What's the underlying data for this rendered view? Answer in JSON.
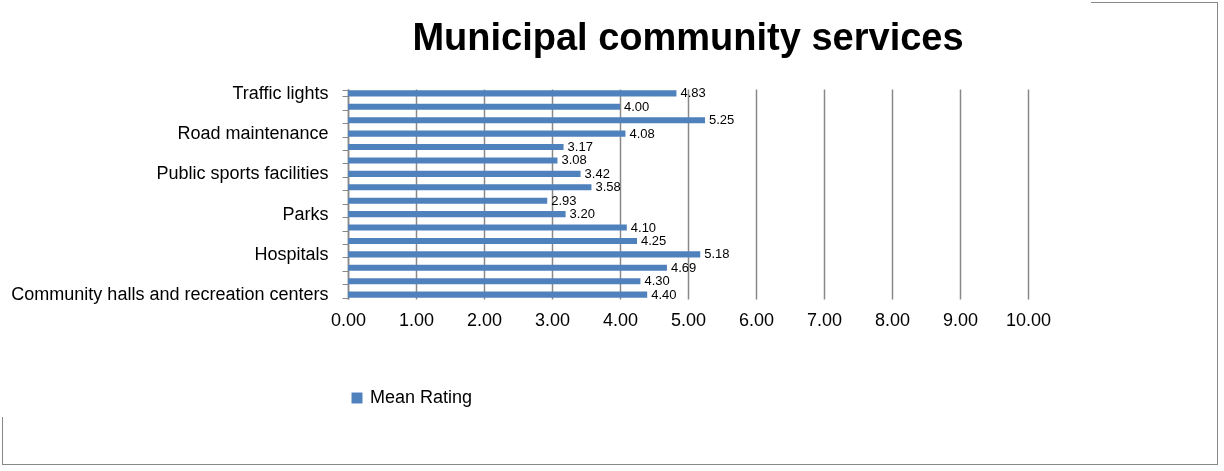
{
  "chart_data": {
    "type": "bar",
    "orientation": "horizontal",
    "title": "Municipal community services",
    "categories": [
      "Traffic lights",
      null,
      null,
      "Road maintenance",
      null,
      null,
      "Public sports facilities",
      null,
      null,
      "Parks",
      null,
      null,
      "Hospitals",
      null,
      null,
      "Community halls and recreation centers"
    ],
    "series": [
      {
        "name": "Mean Rating",
        "color": "#4f81bd",
        "values": [
          4.83,
          4.0,
          5.25,
          4.08,
          3.17,
          3.08,
          3.42,
          3.58,
          2.93,
          3.2,
          4.1,
          4.25,
          5.18,
          4.69,
          4.3,
          4.4
        ],
        "value_labels": [
          "4.83",
          "4.00",
          "5.25",
          "4.08",
          "3.17",
          "3.08",
          "3.42",
          "3.58",
          "2.93",
          "3.20",
          "4.10",
          "4.25",
          "5.18",
          "4.69",
          "4.30",
          "4.40"
        ]
      }
    ],
    "xlim": [
      0,
      10
    ],
    "xticks": [
      {
        "value": 0,
        "label": "0.00"
      },
      {
        "value": 1,
        "label": "1.00"
      },
      {
        "value": 2,
        "label": "2.00"
      },
      {
        "value": 3,
        "label": "3.00"
      },
      {
        "value": 4,
        "label": "4.00"
      },
      {
        "value": 5,
        "label": "5.00"
      },
      {
        "value": 6,
        "label": "6.00"
      },
      {
        "value": 7,
        "label": "7.00"
      },
      {
        "value": 8,
        "label": "8.00"
      },
      {
        "value": 9,
        "label": "9.00"
      },
      {
        "value": 10,
        "label": "10.00"
      }
    ],
    "grid": "x",
    "legend": "bottom"
  }
}
